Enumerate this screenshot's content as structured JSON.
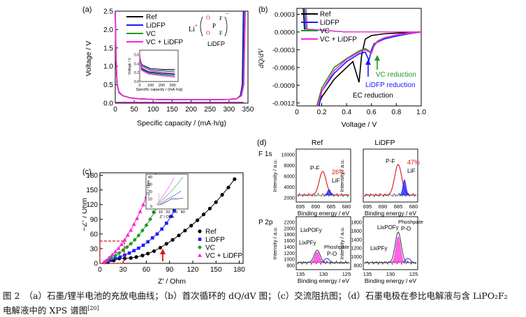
{
  "figure": {
    "caption_lines": [
      "图 2　（a）石墨/锂半电池的充放电曲线；（b）首次循环的 dQ/dV 图；（c）交流阻抗图；（d）石墨电极在参比电解液与含 LiPO₂F₂",
      "电解液中的 XPS 谱图"
    ],
    "caption_ref": "[20]"
  },
  "panel_a": {
    "label": "(a)",
    "ylabel": "Voltage / V",
    "xlabel": "Specific capacity / (mA·h/g)",
    "yticks": [
      "0.0",
      "0.5",
      "1.0",
      "1.5",
      "2.0",
      "2.5"
    ],
    "xticks": [
      "0",
      "50",
      "100",
      "150",
      "200",
      "250",
      "300",
      "350"
    ],
    "molecule_label": "LiDFP",
    "molecule_li": "Li",
    "molecule_plus": "+",
    "molecule_minus": "−",
    "inset": {
      "ylabel": "Voltage / V",
      "xlabel": "Specific capacity / (mA·h/g)",
      "yticks": [
        "0.6",
        "0.4",
        "0.2",
        "0.0"
      ],
      "xticks": [
        "0",
        "100",
        "200",
        "300"
      ]
    }
  },
  "panel_b": {
    "label": "(b)",
    "ylabel": "dQ/dV",
    "xlabel": "Voltage / V",
    "yticks": [
      "0.0003",
      "0.0000",
      "-0.0003",
      "-0.0006",
      "-0.0009",
      "-0.0012"
    ],
    "xticks": [
      "0",
      "0.2",
      "0.4",
      "0.6",
      "0.8",
      "1.0"
    ],
    "annotations": {
      "vc": "VC reduction",
      "lidfp": "LiDFP reduction",
      "ec": "EC reduction"
    }
  },
  "panel_c": {
    "label": "(c)",
    "ylabel": "−Z″ / Ohm",
    "xlabel": "Z′ / Ohm",
    "yticks": [
      "0",
      "30",
      "60",
      "90",
      "120",
      "150",
      "180"
    ],
    "xticks": [
      "0",
      "30",
      "60",
      "90",
      "120",
      "150",
      "180"
    ],
    "inset": {
      "ylabel": "−Z″ / Ohm",
      "xlabel": "Z′ / Ohm",
      "yticks": [
        "40",
        "30",
        "20",
        "10",
        "0"
      ],
      "xticks": [
        "0",
        "10",
        "20",
        "30",
        "40"
      ]
    }
  },
  "panel_d": {
    "label": "(d)",
    "col_titles": [
      "Ref",
      "LiDFP"
    ],
    "row_titles": [
      "F 1s",
      "P 2p"
    ],
    "ylabel": "Intensity / a.u.",
    "xlabel": "Binding energy / eV",
    "f1s_yticks": [
      "10000",
      "8000",
      "6000",
      "4000",
      "2000"
    ],
    "f1s_xticks": [
      "695",
      "690",
      "685",
      "680"
    ],
    "p2p_yticks_ref": [
      "2200",
      "2000",
      "1800",
      "1600",
      "1400",
      "1200",
      "1000",
      "800"
    ],
    "p2p_yticks_lidfp": [
      "1800",
      "1600",
      "1400",
      "1200",
      "1000",
      "800"
    ],
    "p2p_xticks": [
      "135",
      "130",
      "125"
    ],
    "ref_f1s": {
      "pct": "26%",
      "pf": "P-F",
      "lif": "LiF"
    },
    "lidfp_f1s": {
      "pct": "47%",
      "pf": "P-F",
      "lif": "LiF"
    },
    "ref_p2p": {
      "a": "LixPOFy",
      "b": "LixPFy",
      "c": "Phoshpate",
      "d": "P-O"
    },
    "lidfp_p2p": {
      "a": "LixPOFy",
      "b": "LixPFy",
      "c": "Phoshpate",
      "d": "P-O"
    }
  },
  "legend": {
    "items": [
      {
        "name": "Ref",
        "color": "#000000"
      },
      {
        "name": "LiDFP",
        "color": "#1a1aff"
      },
      {
        "name": "VC",
        "color": "#1f9a1f"
      },
      {
        "name": "VC + LiDFP",
        "color": "#ff22dd"
      }
    ]
  },
  "chart_data": [
    {
      "type": "line",
      "title": "",
      "xlabel": "Specific capacity / (mA·h/g)",
      "ylabel": "Voltage / V",
      "xlim": [
        0,
        350
      ],
      "ylim": [
        0,
        2.5
      ],
      "series": [
        {
          "name": "Ref",
          "x": [
            0,
            2,
            5,
            10,
            20,
            40,
            60,
            100,
            150,
            200,
            250,
            300,
            320,
            330,
            335,
            338
          ],
          "y": [
            2.5,
            1.2,
            0.5,
            0.3,
            0.2,
            0.14,
            0.12,
            0.1,
            0.09,
            0.09,
            0.09,
            0.1,
            0.12,
            0.2,
            0.5,
            2.5
          ]
        },
        {
          "name": "LiDFP",
          "x": [
            0,
            2,
            5,
            10,
            20,
            40,
            60,
            100,
            150,
            200,
            250,
            300,
            320,
            330,
            336,
            339
          ],
          "y": [
            2.5,
            1.2,
            0.5,
            0.28,
            0.2,
            0.14,
            0.12,
            0.1,
            0.09,
            0.09,
            0.09,
            0.1,
            0.12,
            0.2,
            0.5,
            2.5
          ]
        },
        {
          "name": "VC",
          "x": [
            0,
            2,
            5,
            10,
            20,
            40,
            60,
            100,
            150,
            200,
            250,
            300,
            320,
            332,
            338,
            342
          ],
          "y": [
            2.5,
            1.2,
            0.5,
            0.3,
            0.2,
            0.14,
            0.12,
            0.1,
            0.09,
            0.09,
            0.09,
            0.1,
            0.12,
            0.2,
            0.5,
            2.5
          ]
        },
        {
          "name": "VC + LiDFP",
          "x": [
            0,
            2,
            5,
            10,
            20,
            40,
            60,
            100,
            150,
            200,
            250,
            300,
            320,
            333,
            339,
            343
          ],
          "y": [
            2.5,
            1.2,
            0.5,
            0.3,
            0.2,
            0.14,
            0.12,
            0.1,
            0.09,
            0.09,
            0.09,
            0.1,
            0.12,
            0.2,
            0.5,
            2.5
          ]
        }
      ]
    },
    {
      "type": "line",
      "title": "",
      "xlabel": "Voltage / V",
      "ylabel": "dQ/dV",
      "xlim": [
        0,
        1.0
      ],
      "ylim": [
        -0.00125,
        0.0004
      ],
      "series": [
        {
          "name": "Ref",
          "x": [
            0.17,
            0.2,
            0.3,
            0.4,
            0.45,
            0.5,
            0.52,
            0.55,
            0.6,
            0.7,
            0.8,
            0.9,
            1.0
          ],
          "y": [
            -0.00125,
            -0.0011,
            -0.0008,
            -0.0006,
            -0.0005,
            -0.00085,
            -0.0004,
            -0.00012,
            -6e-05,
            -3e-05,
            -2e-05,
            -1e-05,
            0
          ]
        },
        {
          "name": "LiDFP",
          "x": [
            0.18,
            0.2,
            0.3,
            0.4,
            0.5,
            0.55,
            0.58,
            0.6,
            0.62,
            0.7,
            0.8,
            0.9,
            1.0
          ],
          "y": [
            -0.00125,
            -0.001,
            -0.0007,
            -0.0005,
            -0.00037,
            -0.00034,
            -0.00048,
            -0.0003,
            -0.0002,
            -0.00012,
            -7e-05,
            -3e-05,
            0
          ]
        },
        {
          "name": "VC",
          "x": [
            0.16,
            0.2,
            0.3,
            0.4,
            0.5,
            0.55,
            0.6,
            0.62,
            0.65,
            0.7,
            0.8,
            0.9,
            1.0
          ],
          "y": [
            -0.00125,
            -0.00095,
            -0.0006,
            -0.00045,
            -0.00032,
            -0.00028,
            -0.00035,
            -0.00022,
            -0.00015,
            -0.0001,
            -5e-05,
            -2e-05,
            0
          ]
        },
        {
          "name": "VC + LiDFP",
          "x": [
            0.17,
            0.2,
            0.3,
            0.4,
            0.5,
            0.55,
            0.6,
            0.62,
            0.65,
            0.7,
            0.8,
            0.9,
            1.0
          ],
          "y": [
            -0.00125,
            -0.001,
            -0.00065,
            -0.00046,
            -0.00034,
            -0.0003,
            -0.00036,
            -0.00024,
            -0.00016,
            -0.0001,
            -5e-05,
            -2e-05,
            0
          ]
        }
      ]
    },
    {
      "type": "scatter",
      "title": "",
      "xlabel": "Z′ / Ohm",
      "ylabel": "−Z″ / Ohm",
      "xlim": [
        0,
        185
      ],
      "ylim": [
        0,
        185
      ],
      "series": [
        {
          "name": "Ref",
          "x": [
            10,
            18,
            25,
            32,
            40,
            47,
            55,
            62,
            70,
            78,
            86,
            94,
            102,
            110,
            118,
            126,
            134,
            142,
            150,
            158,
            166,
            174
          ],
          "y": [
            2,
            6,
            10,
            10,
            11,
            13,
            16,
            20,
            25,
            32,
            40,
            48,
            57,
            67,
            77,
            88,
            100,
            112,
            125,
            140,
            155,
            172
          ]
        },
        {
          "name": "LiDFP",
          "x": [
            8,
            14,
            20,
            26,
            32,
            38,
            44,
            50,
            56,
            62,
            68,
            74,
            80,
            86,
            92,
            96,
            100,
            104,
            108
          ],
          "y": [
            2,
            6,
            10,
            13,
            17,
            21,
            26,
            31,
            37,
            44,
            52,
            60,
            70,
            82,
            96,
            108,
            122,
            140,
            158
          ]
        },
        {
          "name": "VC",
          "x": [
            6,
            10,
            15,
            20,
            25,
            30,
            35,
            40,
            45,
            50,
            55,
            60,
            65,
            70,
            75,
            80,
            84,
            88
          ],
          "y": [
            2,
            6,
            11,
            16,
            21,
            27,
            33,
            40,
            48,
            57,
            67,
            78,
            90,
            104,
            120,
            138,
            155,
            172
          ]
        },
        {
          "name": "VC + LiDFP",
          "x": [
            5,
            8,
            12,
            16,
            20,
            24,
            28,
            32,
            36,
            40,
            44,
            48,
            52,
            56,
            60,
            64,
            68,
            72
          ],
          "y": [
            2,
            6,
            12,
            18,
            24,
            31,
            39,
            48,
            58,
            68,
            80,
            92,
            106,
            120,
            136,
            152,
            168,
            182
          ]
        }
      ]
    }
  ]
}
